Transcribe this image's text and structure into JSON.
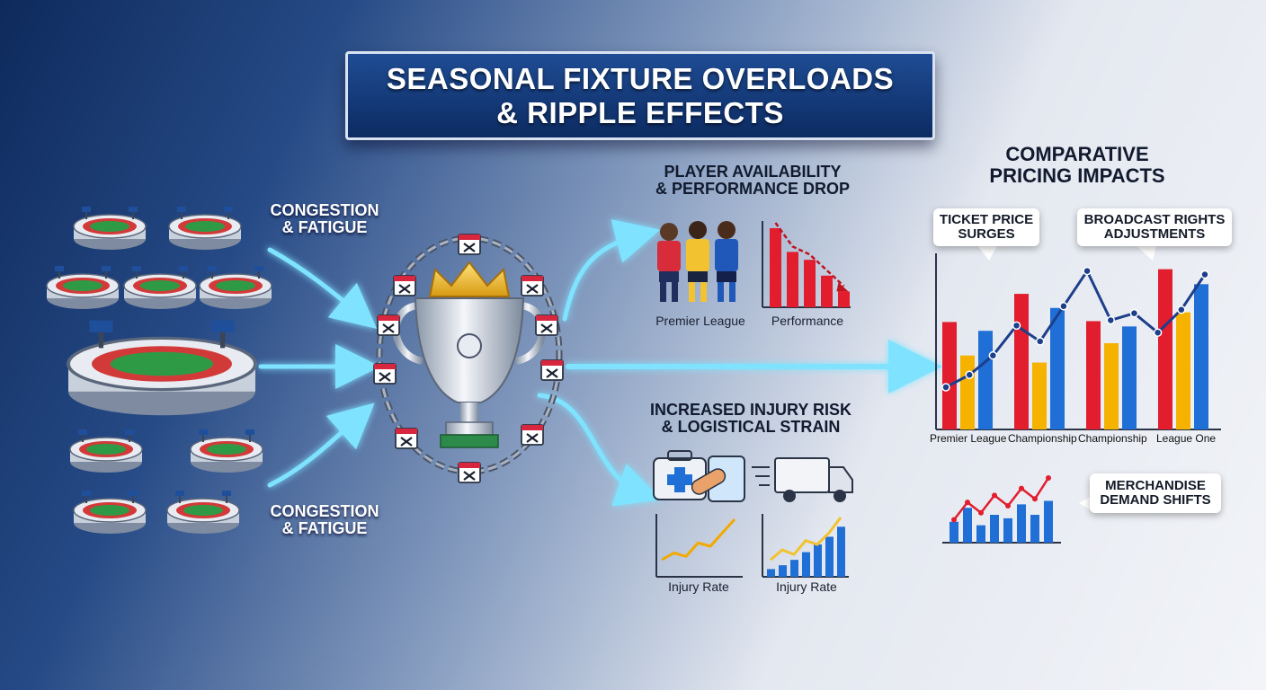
{
  "title": {
    "line1": "SEASONAL FIXTURE OVERLOADS",
    "line2": "& RIPPLE EFFECTS"
  },
  "left_labels": {
    "top": {
      "line1": "CONGESTION",
      "line2": "& FATIGUE"
    },
    "bottom": {
      "line1": "CONGESTION",
      "line2": "& FATIGUE"
    }
  },
  "availability": {
    "heading_line1": "PLAYER AVAILABILITY",
    "heading_line2": "& PERFORMANCE DROP",
    "players_caption": "Premier League",
    "chart_caption": "Performance",
    "performance_values": [
      10,
      7,
      6,
      4,
      2
    ]
  },
  "injury": {
    "heading_line1": "INCREASED INJURY RISK",
    "heading_line2": "& LOGISTICAL STRAIN",
    "chart1_caption": "Injury Rate",
    "chart2_caption": "Injury Rate",
    "chart1_line": [
      2,
      3,
      2.5,
      4.5,
      4,
      6,
      8
    ],
    "chart2_bars": [
      1,
      1.5,
      2.2,
      3.2,
      4.2,
      5.2,
      6.5
    ],
    "chart2_line": [
      1.5,
      2.8,
      2.2,
      4,
      3.5,
      5,
      7
    ]
  },
  "pricing": {
    "heading_line1": "COMPARATIVE",
    "heading_line2": "PRICING IMPACTS",
    "callout_ticket_line1": "TICKET PRICE",
    "callout_ticket_line2": "SURGES",
    "callout_broadcast_line1": "BROADCAST RIGHTS",
    "callout_broadcast_line2": "ADJUSTMENTS",
    "callout_merch_line1": "MERCHANDISE",
    "callout_merch_line2": "DEMAND SHIFTS"
  },
  "chart_data": [
    {
      "type": "bar",
      "categories": [
        "Premier League",
        "Championship",
        "Championship",
        "League One"
      ],
      "series": [
        {
          "values": [
            122,
            154,
            123,
            182
          ]
        },
        {
          "values": [
            84,
            76,
            98,
            133
          ]
        },
        {
          "values": [
            112,
            138,
            117,
            165
          ]
        }
      ],
      "line_values": [
        48,
        62,
        84,
        118,
        100,
        140,
        180,
        124,
        132,
        110,
        136,
        176
      ],
      "ylim": [
        0,
        200
      ],
      "colors": [
        "#e11d2e",
        "#f5b300",
        "#1f6fd6"
      ]
    },
    {
      "type": "bar",
      "bars": [
        3,
        5,
        2.5,
        4,
        3.5,
        5.5,
        4,
        6
      ],
      "line_values": [
        2,
        4.5,
        3,
        5.5,
        4,
        6.5,
        5,
        8
      ]
    }
  ],
  "colors": {
    "accent_blue": "#1f6fd6",
    "accent_red": "#e11d2e",
    "accent_yellow": "#f5b300",
    "glow": "#5fd4ff"
  },
  "icons": [
    "stadium-icon",
    "trophy-icon",
    "crown-icon",
    "calendar-icon",
    "chain-icon",
    "first-aid-kit-icon",
    "truck-icon",
    "player-icon"
  ]
}
